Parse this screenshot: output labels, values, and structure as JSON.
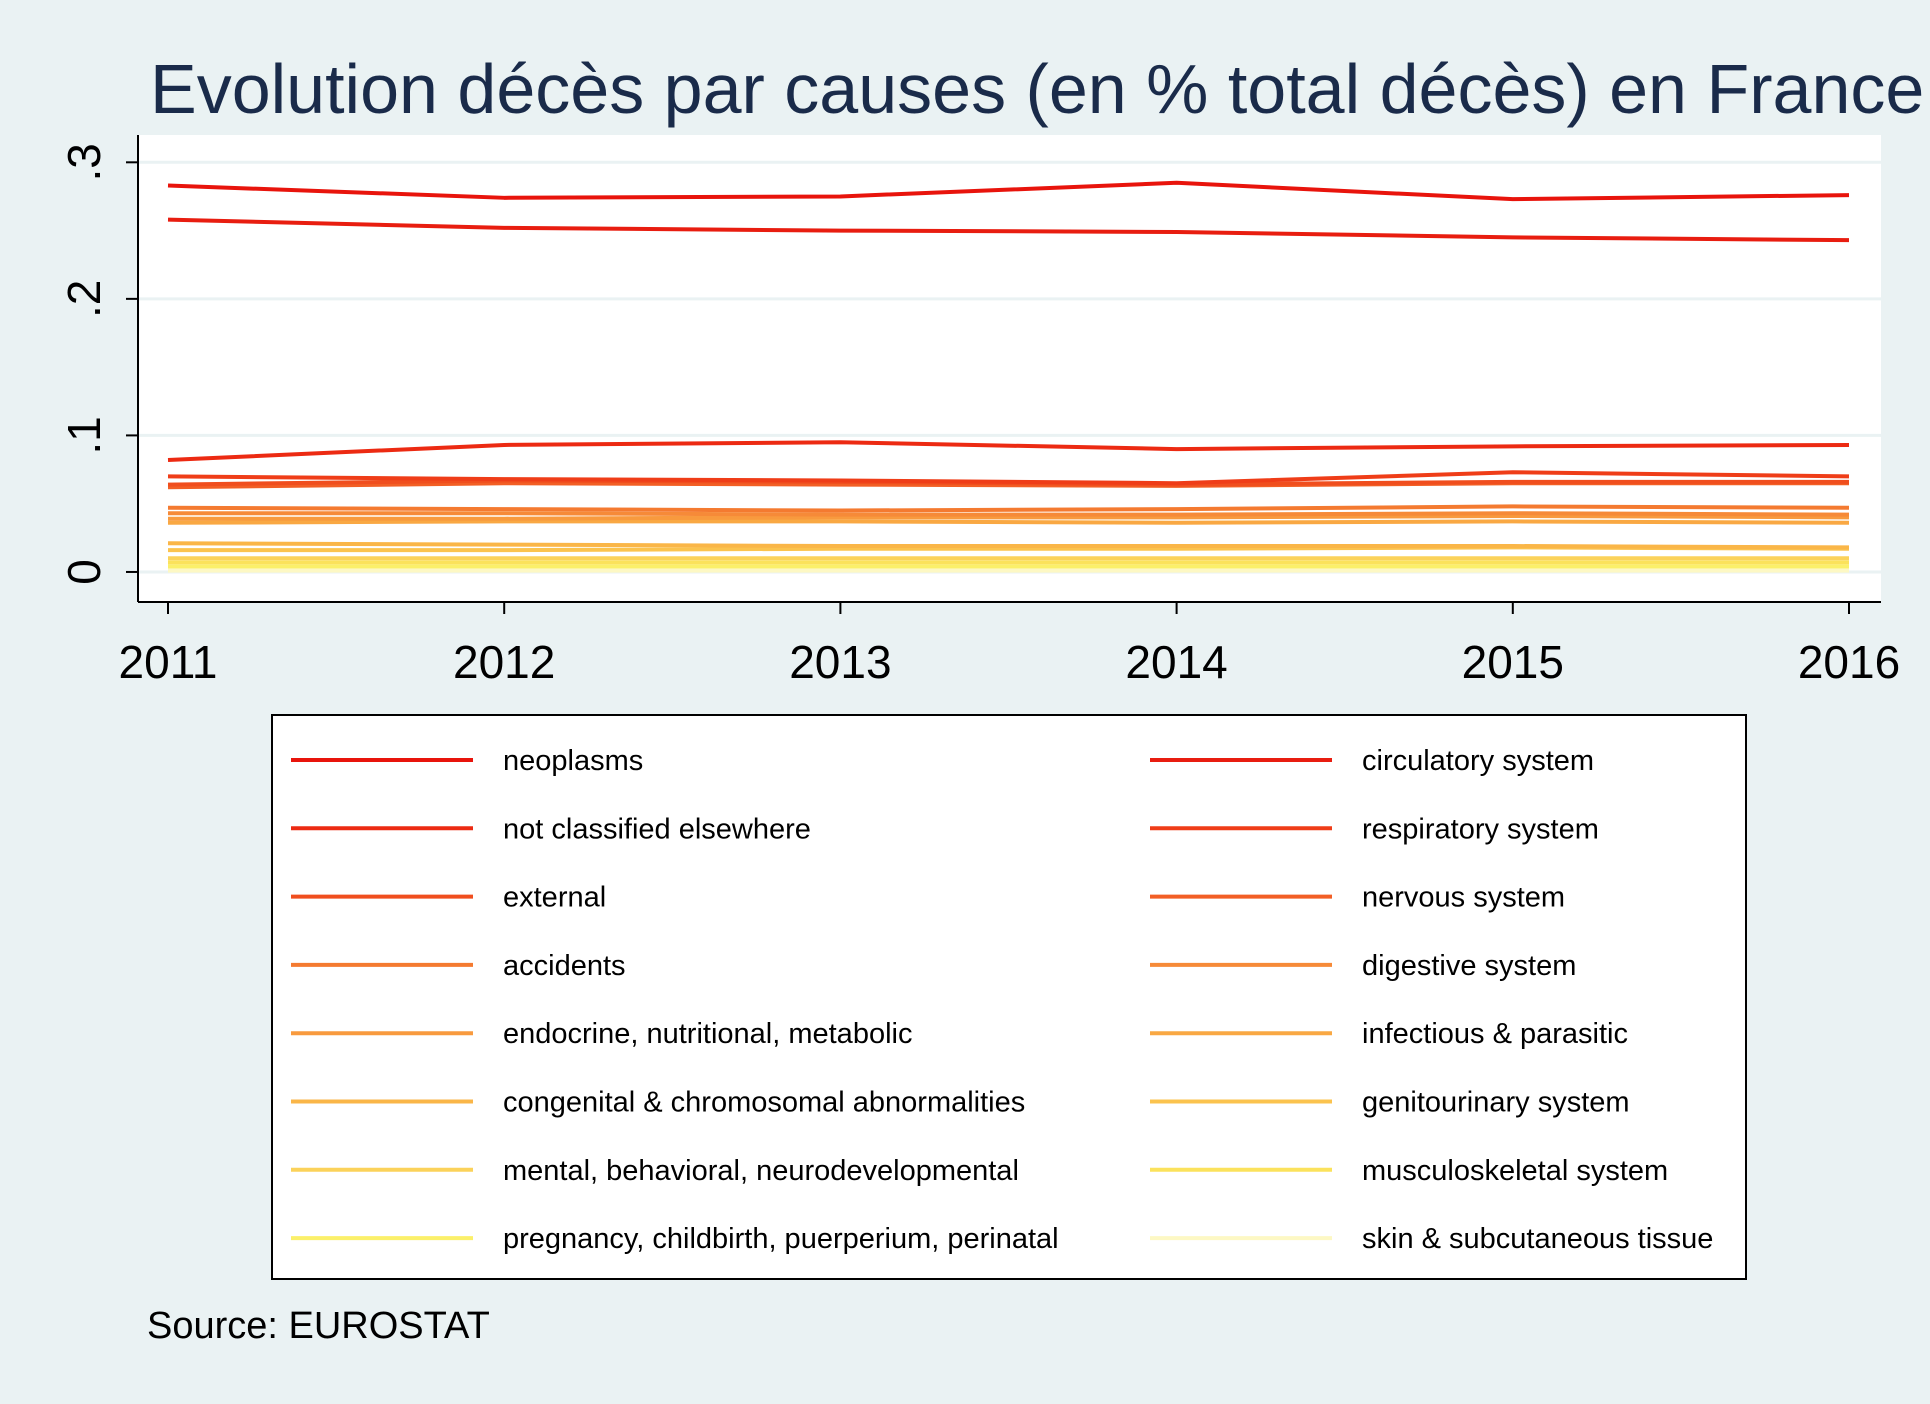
{
  "chart_data": {
    "type": "line",
    "title": "Evolution décès par causes (en % total décès) en France",
    "note": "Source: EUROSTAT",
    "xlabel": "",
    "ylabel": "",
    "x": [
      2011,
      2012,
      2013,
      2014,
      2015,
      2016
    ],
    "x_tick_labels": [
      "2011",
      "2012",
      "2013",
      "2014",
      "2015",
      "2016"
    ],
    "xlim": [
      2011,
      2016
    ],
    "ylim": [
      -0.022,
      0.32
    ],
    "y_ticks": [
      0,
      0.1,
      0.2,
      0.3
    ],
    "y_tick_labels": [
      "0",
      ".1",
      ".2",
      ".3"
    ],
    "y_tick_orientation": "vertical",
    "grid": "horizontal",
    "legend_position": "bottom, two columns",
    "series": [
      {
        "name": "neoplasms",
        "color": "#e8140c",
        "values": [
          0.283,
          0.274,
          0.275,
          0.285,
          0.273,
          0.276
        ]
      },
      {
        "name": "circulatory system",
        "color": "#e81d10",
        "values": [
          0.258,
          0.252,
          0.25,
          0.249,
          0.245,
          0.243
        ]
      },
      {
        "name": "not classified elsewhere",
        "color": "#ec2a12",
        "values": [
          0.082,
          0.093,
          0.095,
          0.09,
          0.092,
          0.093
        ]
      },
      {
        "name": "respiratory system",
        "color": "#ef3d18",
        "values": [
          0.07,
          0.068,
          0.067,
          0.065,
          0.073,
          0.07
        ]
      },
      {
        "name": "external",
        "color": "#f04e1e",
        "values": [
          0.064,
          0.067,
          0.066,
          0.064,
          0.066,
          0.066
        ]
      },
      {
        "name": "nervous system",
        "color": "#f25f25",
        "values": [
          0.062,
          0.065,
          0.064,
          0.063,
          0.065,
          0.065
        ]
      },
      {
        "name": "accidents",
        "color": "#f47a30",
        "values": [
          0.047,
          0.046,
          0.045,
          0.046,
          0.048,
          0.047
        ]
      },
      {
        "name": "digestive system",
        "color": "#f68a38",
        "values": [
          0.043,
          0.043,
          0.042,
          0.042,
          0.043,
          0.042
        ]
      },
      {
        "name": "endocrine, nutritional, metabolic",
        "color": "#f89a3e",
        "values": [
          0.039,
          0.039,
          0.04,
          0.04,
          0.041,
          0.04
        ]
      },
      {
        "name": "infectious & parasitic",
        "color": "#f9a843",
        "values": [
          0.036,
          0.037,
          0.037,
          0.036,
          0.037,
          0.036
        ]
      },
      {
        "name": "congenital & chromosomal abnormalities",
        "color": "#fab648",
        "values": [
          0.021,
          0.02,
          0.019,
          0.019,
          0.019,
          0.018
        ]
      },
      {
        "name": "genitourinary system",
        "color": "#fbc34e",
        "values": [
          0.016,
          0.016,
          0.017,
          0.017,
          0.018,
          0.017
        ]
      },
      {
        "name": "mental, behavioral, neurodevelopmental",
        "color": "#fbd25a",
        "values": [
          0.01,
          0.01,
          0.01,
          0.01,
          0.01,
          0.01
        ]
      },
      {
        "name": "musculoskeletal system",
        "color": "#fbe25c",
        "values": [
          0.007,
          0.007,
          0.007,
          0.007,
          0.007,
          0.007
        ]
      },
      {
        "name": "pregnancy, childbirth, puerperium, perinatal",
        "color": "#fbf06a",
        "values": [
          0.004,
          0.004,
          0.004,
          0.004,
          0.004,
          0.004
        ]
      },
      {
        "name": "skin & subcutaneous tissue",
        "color": "#fdf8c4",
        "values": [
          0.001,
          0.001,
          0.001,
          0.001,
          0.001,
          0.001
        ]
      }
    ]
  }
}
